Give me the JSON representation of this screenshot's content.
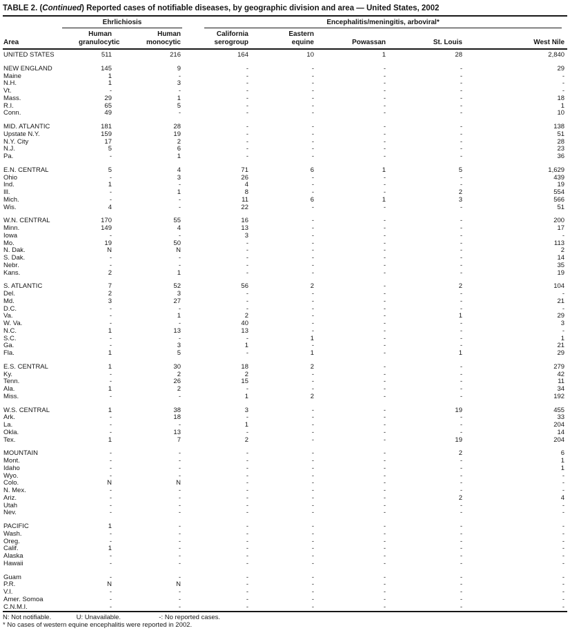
{
  "title": {
    "prefix": "TABLE 2. (",
    "continued": "Continued",
    "rest": ") Reported cases of notifiable diseases, by geographic division and area — United States, 2002"
  },
  "header": {
    "area_label": "Area",
    "groups": [
      {
        "label": "Ehrlichiosis"
      },
      {
        "label": "Encephalitis/meningitis, arboviral*"
      }
    ],
    "columns": [
      "Human\ngranulocytic",
      "Human\nmonocytic",
      "California\nserogroup",
      "Eastern\nequine",
      "Powassan",
      "St. Louis",
      "West Nile"
    ]
  },
  "table": {
    "sections": [
      {
        "rows": [
          {
            "area": "UNITED STATES",
            "values": [
              "511",
              "216",
              "164",
              "10",
              "1",
              "28",
              "2,840"
            ]
          }
        ]
      },
      {
        "rows": [
          {
            "area": "NEW ENGLAND",
            "values": [
              "145",
              "9",
              "-",
              "-",
              "-",
              "-",
              "29"
            ]
          },
          {
            "area": "Maine",
            "values": [
              "1",
              "-",
              "-",
              "-",
              "-",
              "-",
              "-"
            ]
          },
          {
            "area": "N.H.",
            "values": [
              "1",
              "3",
              "-",
              "-",
              "-",
              "-",
              "-"
            ]
          },
          {
            "area": "Vt.",
            "values": [
              "-",
              "-",
              "-",
              "-",
              "-",
              "-",
              "-"
            ]
          },
          {
            "area": "Mass.",
            "values": [
              "29",
              "1",
              "-",
              "-",
              "-",
              "-",
              "18"
            ]
          },
          {
            "area": "R.I.",
            "values": [
              "65",
              "5",
              "-",
              "-",
              "-",
              "-",
              "1"
            ]
          },
          {
            "area": "Conn.",
            "values": [
              "49",
              "-",
              "-",
              "-",
              "-",
              "-",
              "10"
            ]
          }
        ]
      },
      {
        "rows": [
          {
            "area": "MID. ATLANTIC",
            "values": [
              "181",
              "28",
              "-",
              "-",
              "-",
              "-",
              "138"
            ]
          },
          {
            "area": "Upstate N.Y.",
            "values": [
              "159",
              "19",
              "-",
              "-",
              "-",
              "-",
              "51"
            ]
          },
          {
            "area": "N.Y. City",
            "values": [
              "17",
              "2",
              "-",
              "-",
              "-",
              "-",
              "28"
            ]
          },
          {
            "area": "N.J.",
            "values": [
              "5",
              "6",
              "-",
              "-",
              "-",
              "-",
              "23"
            ]
          },
          {
            "area": "Pa.",
            "values": [
              "-",
              "1",
              "-",
              "-",
              "-",
              "-",
              "36"
            ]
          }
        ]
      },
      {
        "rows": [
          {
            "area": "E.N. CENTRAL",
            "values": [
              "5",
              "4",
              "71",
              "6",
              "1",
              "5",
              "1,629"
            ]
          },
          {
            "area": "Ohio",
            "values": [
              "-",
              "3",
              "26",
              "-",
              "-",
              "-",
              "439"
            ]
          },
          {
            "area": "Ind.",
            "values": [
              "1",
              "-",
              "4",
              "-",
              "-",
              "-",
              "19"
            ]
          },
          {
            "area": "Ill.",
            "values": [
              "-",
              "1",
              "8",
              "-",
              "-",
              "2",
              "554"
            ]
          },
          {
            "area": "Mich.",
            "values": [
              "-",
              "-",
              "11",
              "6",
              "1",
              "3",
              "566"
            ]
          },
          {
            "area": "Wis.",
            "values": [
              "4",
              "-",
              "22",
              "-",
              "-",
              "-",
              "51"
            ]
          }
        ]
      },
      {
        "rows": [
          {
            "area": "W.N. CENTRAL",
            "values": [
              "170",
              "55",
              "16",
              "-",
              "-",
              "-",
              "200"
            ]
          },
          {
            "area": "Minn.",
            "values": [
              "149",
              "4",
              "13",
              "-",
              "-",
              "-",
              "17"
            ]
          },
          {
            "area": "Iowa",
            "values": [
              "-",
              "-",
              "3",
              "-",
              "-",
              "-",
              "-"
            ]
          },
          {
            "area": "Mo.",
            "values": [
              "19",
              "50",
              "-",
              "-",
              "-",
              "-",
              "113"
            ]
          },
          {
            "area": "N. Dak.",
            "values": [
              "N",
              "N",
              "-",
              "-",
              "-",
              "-",
              "2"
            ]
          },
          {
            "area": "S. Dak.",
            "values": [
              "-",
              "-",
              "-",
              "-",
              "-",
              "-",
              "14"
            ]
          },
          {
            "area": "Nebr.",
            "values": [
              "-",
              "-",
              "-",
              "-",
              "-",
              "-",
              "35"
            ]
          },
          {
            "area": "Kans.",
            "values": [
              "2",
              "1",
              "-",
              "-",
              "-",
              "-",
              "19"
            ]
          }
        ]
      },
      {
        "rows": [
          {
            "area": "S. ATLANTIC",
            "values": [
              "7",
              "52",
              "56",
              "2",
              "-",
              "2",
              "104"
            ]
          },
          {
            "area": "Del.",
            "values": [
              "2",
              "3",
              "-",
              "-",
              "-",
              "-",
              "-"
            ]
          },
          {
            "area": "Md.",
            "values": [
              "3",
              "27",
              "-",
              "-",
              "-",
              "-",
              "21"
            ]
          },
          {
            "area": "D.C.",
            "values": [
              "-",
              "-",
              "-",
              "-",
              "-",
              "-",
              "-"
            ]
          },
          {
            "area": "Va.",
            "values": [
              "-",
              "1",
              "2",
              "-",
              "-",
              "1",
              "29"
            ]
          },
          {
            "area": "W. Va.",
            "values": [
              "-",
              "-",
              "40",
              "-",
              "-",
              "-",
              "3"
            ]
          },
          {
            "area": "N.C.",
            "values": [
              "1",
              "13",
              "13",
              "-",
              "-",
              "-",
              "-"
            ]
          },
          {
            "area": "S.C.",
            "values": [
              "-",
              "-",
              "-",
              "1",
              "-",
              "-",
              "1"
            ]
          },
          {
            "area": "Ga.",
            "values": [
              "-",
              "3",
              "1",
              "-",
              "-",
              "-",
              "21"
            ]
          },
          {
            "area": "Fla.",
            "values": [
              "1",
              "5",
              "-",
              "1",
              "-",
              "1",
              "29"
            ]
          }
        ]
      },
      {
        "rows": [
          {
            "area": "E.S. CENTRAL",
            "values": [
              "1",
              "30",
              "18",
              "2",
              "-",
              "-",
              "279"
            ]
          },
          {
            "area": "Ky.",
            "values": [
              "-",
              "2",
              "2",
              "-",
              "-",
              "-",
              "42"
            ]
          },
          {
            "area": "Tenn.",
            "values": [
              "-",
              "26",
              "15",
              "-",
              "-",
              "-",
              "11"
            ]
          },
          {
            "area": "Ala.",
            "values": [
              "1",
              "2",
              "-",
              "-",
              "-",
              "-",
              "34"
            ]
          },
          {
            "area": "Miss.",
            "values": [
              "-",
              "-",
              "1",
              "2",
              "-",
              "-",
              "192"
            ]
          }
        ]
      },
      {
        "rows": [
          {
            "area": "W.S. CENTRAL",
            "values": [
              "1",
              "38",
              "3",
              "-",
              "-",
              "19",
              "455"
            ]
          },
          {
            "area": "Ark.",
            "values": [
              "-",
              "18",
              "-",
              "-",
              "-",
              "-",
              "33"
            ]
          },
          {
            "area": "La.",
            "values": [
              "-",
              "-",
              "1",
              "-",
              "-",
              "-",
              "204"
            ]
          },
          {
            "area": "Okla.",
            "values": [
              "-",
              "13",
              "-",
              "-",
              "-",
              "-",
              "14"
            ]
          },
          {
            "area": "Tex.",
            "values": [
              "1",
              "7",
              "2",
              "-",
              "-",
              "19",
              "204"
            ]
          }
        ]
      },
      {
        "rows": [
          {
            "area": "MOUNTAIN",
            "values": [
              "-",
              "-",
              "-",
              "-",
              "-",
              "2",
              "6"
            ]
          },
          {
            "area": "Mont.",
            "values": [
              "-",
              "-",
              "-",
              "-",
              "-",
              "-",
              "1"
            ]
          },
          {
            "area": "Idaho",
            "values": [
              "-",
              "-",
              "-",
              "-",
              "-",
              "-",
              "1"
            ]
          },
          {
            "area": "Wyo.",
            "values": [
              "-",
              "-",
              "-",
              "-",
              "-",
              "-",
              "-"
            ]
          },
          {
            "area": "Colo.",
            "values": [
              "N",
              "N",
              "-",
              "-",
              "-",
              "-",
              "-"
            ]
          },
          {
            "area": "N. Mex.",
            "values": [
              "-",
              "-",
              "-",
              "-",
              "-",
              "-",
              "-"
            ]
          },
          {
            "area": "Ariz.",
            "values": [
              "-",
              "-",
              "-",
              "-",
              "-",
              "2",
              "4"
            ]
          },
          {
            "area": "Utah",
            "values": [
              "-",
              "-",
              "-",
              "-",
              "-",
              "-",
              "-"
            ]
          },
          {
            "area": "Nev.",
            "values": [
              "-",
              "-",
              "-",
              "-",
              "-",
              "-",
              "-"
            ]
          }
        ]
      },
      {
        "rows": [
          {
            "area": "PACIFIC",
            "values": [
              "1",
              "-",
              "-",
              "-",
              "-",
              "-",
              "-"
            ]
          },
          {
            "area": "Wash.",
            "values": [
              "-",
              "-",
              "-",
              "-",
              "-",
              "-",
              "-"
            ]
          },
          {
            "area": "Oreg.",
            "values": [
              "-",
              "-",
              "-",
              "-",
              "-",
              "-",
              "-"
            ]
          },
          {
            "area": "Calif.",
            "values": [
              "1",
              "-",
              "-",
              "-",
              "-",
              "-",
              "-"
            ]
          },
          {
            "area": "Alaska",
            "values": [
              "-",
              "-",
              "-",
              "-",
              "-",
              "-",
              "-"
            ]
          },
          {
            "area": "Hawaii",
            "values": [
              "-",
              "-",
              "-",
              "-",
              "-",
              "-",
              "-"
            ]
          }
        ]
      },
      {
        "rows": [
          {
            "area": "Guam",
            "values": [
              "-",
              "-",
              "-",
              "-",
              "-",
              "-",
              "-"
            ]
          },
          {
            "area": "P.R.",
            "values": [
              "N",
              "N",
              "-",
              "-",
              "-",
              "-",
              "-"
            ]
          },
          {
            "area": "V.I.",
            "values": [
              "-",
              "-",
              "-",
              "-",
              "-",
              "-",
              "-"
            ]
          },
          {
            "area": "Amer. Somoa",
            "values": [
              "-",
              "-",
              "-",
              "-",
              "-",
              "-",
              "-"
            ]
          },
          {
            "area": "C.N.M.I.",
            "values": [
              "-",
              "-",
              "-",
              "-",
              "-",
              "-",
              "-"
            ]
          }
        ]
      }
    ]
  },
  "footnotes": {
    "legend": [
      "N: Not notifiable.",
      "U: Unavailable.",
      "-: No reported cases."
    ],
    "note": "* No cases of western equine encephalitis were reported in 2002."
  }
}
